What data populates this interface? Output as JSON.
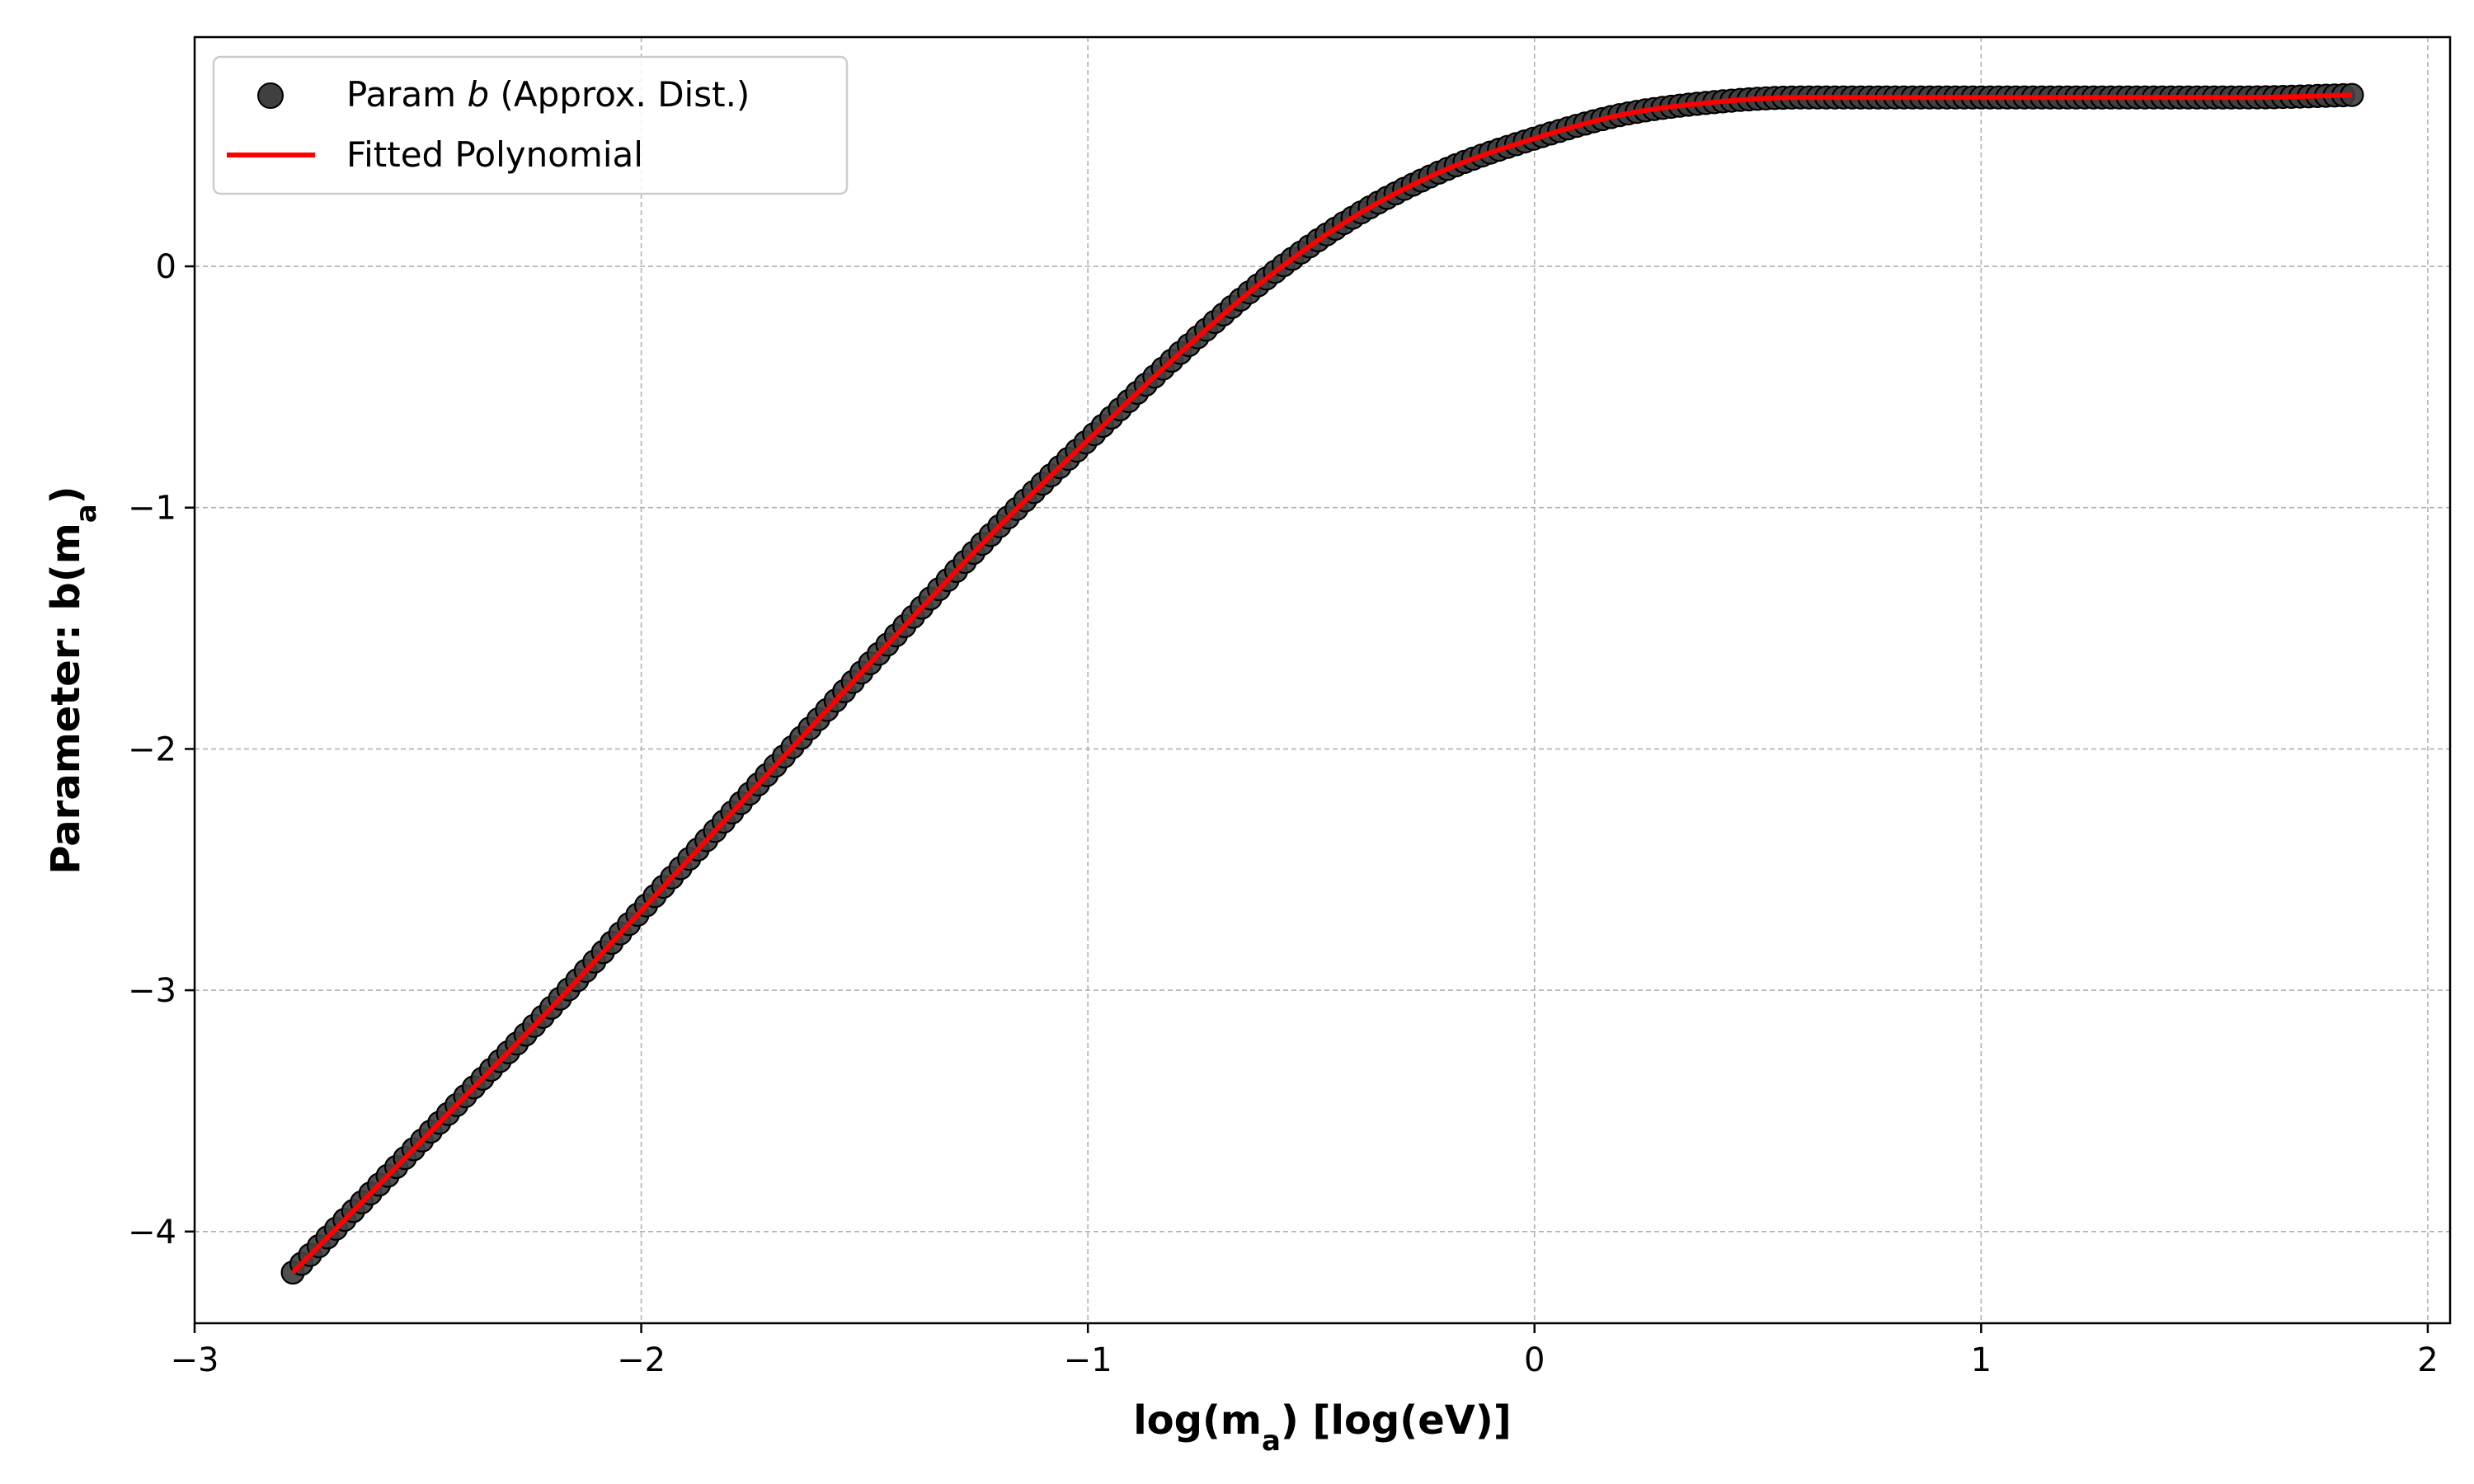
{
  "chart_data": {
    "type": "scatter",
    "xlabel": "log(m_a) [log(eV)]",
    "xlabel_parts": {
      "pre": "log(m",
      "sub": "a",
      "post": ") [log(eV)]"
    },
    "ylabel": "Parameter: b(m_a)",
    "ylabel_parts": {
      "pre": "Parameter: b(m",
      "sub": "a",
      "post": ")"
    },
    "xlim": [
      -3.0,
      2.05
    ],
    "ylim": [
      -4.38,
      0.95
    ],
    "xticks": [
      -3,
      -2,
      -1,
      0,
      1,
      2
    ],
    "xtick_labels": [
      "−3",
      "−2",
      "−1",
      "0",
      "1",
      "2"
    ],
    "yticks": [
      -4,
      -3,
      -2,
      -1,
      0
    ],
    "ytick_labels": [
      "−4",
      "−3",
      "−2",
      "−1",
      "0"
    ],
    "grid": true,
    "legend_position": "top-left",
    "x_range": [
      -2.78,
      1.83
    ],
    "series": [
      {
        "name": "Param b (Approx. Dist.)",
        "label_parts": {
          "pre": "Param ",
          "italic": "b",
          "post": " (Approx. Dist.)"
        },
        "kind": "scatter",
        "color": "#404040",
        "edge_color": "#000000",
        "x": [
          -2.78,
          -2.6,
          -2.4,
          -2.2,
          -2.0,
          -1.8,
          -1.6,
          -1.4,
          -1.2,
          -1.0,
          -0.8,
          -0.6,
          -0.4,
          -0.2,
          0.0,
          0.2,
          0.4,
          0.6,
          0.8,
          1.0,
          1.2,
          1.4,
          1.6,
          1.83
        ],
        "y": [
          -4.17,
          -3.83,
          -3.45,
          -3.07,
          -2.67,
          -2.27,
          -1.87,
          -1.47,
          -1.08,
          -0.72,
          -0.37,
          -0.05,
          0.21,
          0.4,
          0.53,
          0.63,
          0.68,
          0.7,
          0.7,
          0.7,
          0.7,
          0.7,
          0.7,
          0.71
        ]
      },
      {
        "name": "Fitted Polynomial",
        "kind": "line",
        "color": "#ff0000",
        "x": [
          -2.78,
          -2.6,
          -2.4,
          -2.2,
          -2.0,
          -1.8,
          -1.6,
          -1.4,
          -1.2,
          -1.0,
          -0.8,
          -0.6,
          -0.4,
          -0.2,
          0.0,
          0.2,
          0.4,
          0.6,
          0.8,
          1.0,
          1.2,
          1.4,
          1.6,
          1.83
        ],
        "y": [
          -4.17,
          -3.83,
          -3.45,
          -3.07,
          -2.67,
          -2.27,
          -1.87,
          -1.47,
          -1.08,
          -0.72,
          -0.37,
          -0.05,
          0.21,
          0.4,
          0.53,
          0.63,
          0.68,
          0.7,
          0.7,
          0.7,
          0.7,
          0.7,
          0.7,
          0.71
        ]
      }
    ]
  }
}
